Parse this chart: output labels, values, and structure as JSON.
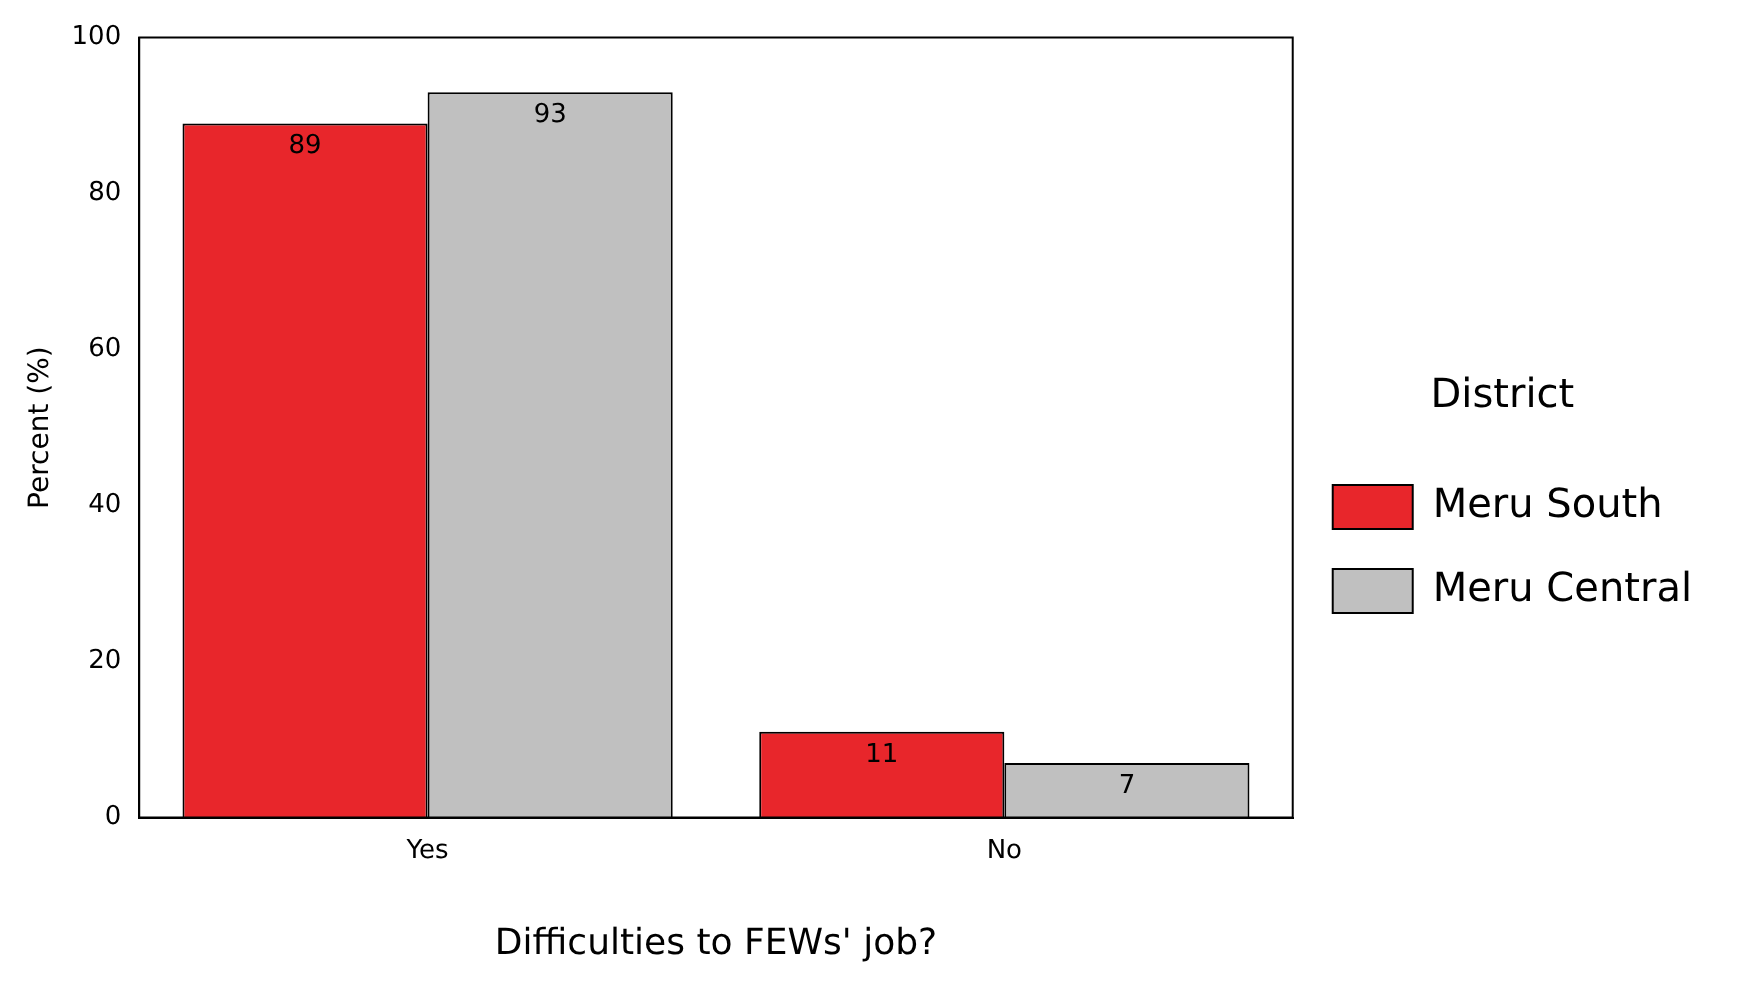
{
  "chart_data": {
    "type": "bar",
    "xlabel": "Difficulties to FEWs' job?",
    "ylabel": "Percent (%)",
    "legend_title": "District",
    "categories": [
      "Yes",
      "No"
    ],
    "series": [
      {
        "name": "Meru South",
        "color": "#e8262b",
        "values": [
          89,
          11
        ]
      },
      {
        "name": "Meru Central",
        "color": "#c0c0c0",
        "values": [
          93,
          7
        ]
      }
    ],
    "ylim": [
      0,
      100
    ],
    "yticks": [
      0,
      20,
      40,
      60,
      80,
      100
    ],
    "grid": false,
    "legend": "right",
    "data_labels": true
  }
}
